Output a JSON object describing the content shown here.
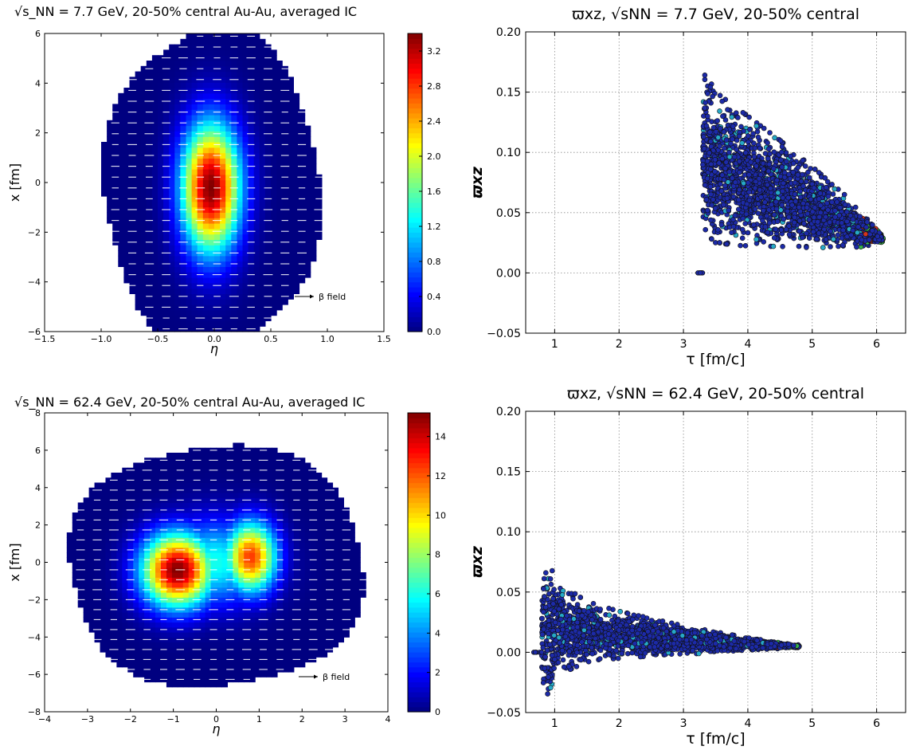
{
  "chart_data": [
    {
      "type": "heatmap",
      "title": "√s_NN = 7.7 GeV, 20-50% central Au-Au, averaged IC",
      "xlabel": "η",
      "ylabel": "x [fm]",
      "xlim": [
        -1.5,
        1.5
      ],
      "ylim": [
        -6,
        6
      ],
      "xticks": [
        "−1.5",
        "−1.0",
        "−0.5",
        "0.0",
        "0.5",
        "1.0",
        "1.5"
      ],
      "yticks": [
        "−6",
        "−4",
        "−2",
        "0",
        "2",
        "4",
        "6"
      ],
      "colorbar": {
        "min": 0,
        "max": 3.4,
        "ticks": [
          "0.0",
          "0.4",
          "0.8",
          "1.2",
          "1.6",
          "2.0",
          "2.4",
          "2.8",
          "3.2"
        ]
      },
      "legend": "β field",
      "legend_position": "lower-right",
      "field": {
        "peaks": [
          {
            "eta": -0.03,
            "x": -0.2,
            "value": 3.4,
            "sigma_eta": 0.17,
            "sigma_x": 1.7
          }
        ]
      },
      "grid": false
    },
    {
      "type": "scatter",
      "title": "ϖxz, √sNN = 7.7 GeV, 20-50% central",
      "xlabel": "τ [fm/c]",
      "ylabel": "ϖxz",
      "xlim": [
        0.55,
        6.45
      ],
      "ylim": [
        -0.05,
        0.2
      ],
      "xticks": [
        "1",
        "2",
        "3",
        "4",
        "5",
        "6"
      ],
      "yticks": [
        "−0.05",
        "0.00",
        "0.05",
        "0.10",
        "0.15",
        "0.20"
      ],
      "envelope": {
        "tau": [
          3.3,
          3.4,
          3.5,
          4.0,
          4.5,
          5.0,
          5.5,
          5.9,
          6.1
        ],
        "upper": [
          0.165,
          0.162,
          0.15,
          0.13,
          0.11,
          0.088,
          0.065,
          0.042,
          0.03
        ],
        "lower": [
          0.04,
          0.03,
          0.025,
          0.022,
          0.022,
          0.021,
          0.021,
          0.022,
          0.026
        ]
      },
      "tail": {
        "tau": [
          3.2,
          3.3
        ],
        "value": 0.0
      },
      "grid": true
    },
    {
      "type": "heatmap",
      "title": "√s_NN = 62.4 GeV, 20-50% central Au-Au, averaged IC",
      "xlabel": "η",
      "ylabel": "x [fm]",
      "xlim": [
        -4,
        4
      ],
      "ylim": [
        -8,
        8
      ],
      "xticks": [
        "−4",
        "−3",
        "−2",
        "−1",
        "0",
        "1",
        "2",
        "3",
        "4"
      ],
      "yticks": [
        "−8",
        "−6",
        "−4",
        "−2",
        "0",
        "2",
        "4",
        "6",
        "8"
      ],
      "colorbar": {
        "min": 0,
        "max": 15.2,
        "ticks": [
          "0",
          "2",
          "4",
          "6",
          "8",
          "10",
          "12",
          "14"
        ]
      },
      "legend": "β field",
      "legend_position": "lower-right",
      "field": {
        "peaks": [
          {
            "eta": -0.9,
            "x": -0.4,
            "value": 15.2,
            "sigma_eta": 0.55,
            "sigma_x": 1.3
          },
          {
            "eta": 0.8,
            "x": 0.3,
            "value": 12.5,
            "sigma_eta": 0.4,
            "sigma_x": 1.25
          },
          {
            "eta": -0.05,
            "x": 0.0,
            "value": 6.0,
            "sigma_eta": 0.8,
            "sigma_x": 1.5
          }
        ]
      },
      "grid": false
    },
    {
      "type": "scatter",
      "title": "ϖxz, √sNN = 62.4 GeV, 20-50% central",
      "xlabel": "τ [fm/c]",
      "ylabel": "ϖxz",
      "xlim": [
        0.55,
        6.45
      ],
      "ylim": [
        -0.05,
        0.2
      ],
      "xticks": [
        "1",
        "2",
        "3",
        "4",
        "5",
        "6"
      ],
      "yticks": [
        "−0.05",
        "0.00",
        "0.05",
        "0.10",
        "0.15",
        "0.20"
      ],
      "envelope": {
        "tau": [
          0.8,
          0.9,
          1.0,
          1.5,
          2.0,
          2.5,
          3.0,
          3.5,
          4.0,
          4.5,
          4.8
        ],
        "upper": [
          0.05,
          0.08,
          0.06,
          0.042,
          0.034,
          0.028,
          0.022,
          0.017,
          0.012,
          0.008,
          0.006
        ],
        "lower": [
          -0.03,
          -0.035,
          -0.02,
          -0.008,
          -0.005,
          -0.003,
          -0.002,
          0.0,
          0.002,
          0.003,
          0.004
        ]
      },
      "tail": {
        "tau": [
          0.65,
          0.8
        ],
        "value": 0.0
      },
      "grid": true
    }
  ]
}
